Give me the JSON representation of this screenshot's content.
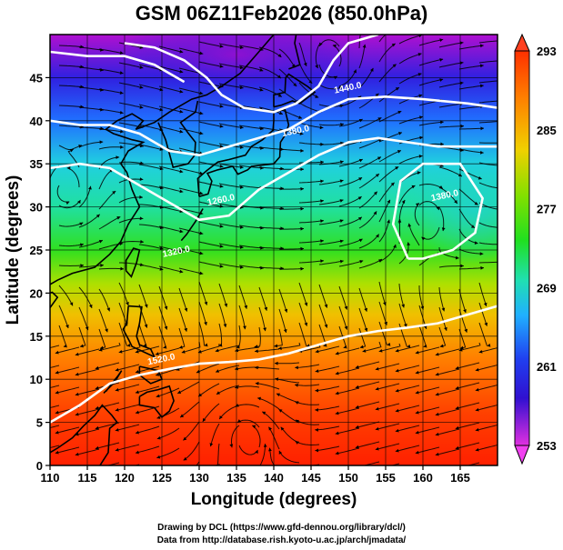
{
  "title": "GSM 06Z11Feb2026 (850.0hPa)",
  "x_axis": {
    "label": "Longitude (degrees)",
    "min": 110,
    "max": 170,
    "ticks": [
      "110",
      "115",
      "120",
      "125",
      "130",
      "135",
      "140",
      "145",
      "150",
      "155",
      "160",
      "165"
    ]
  },
  "y_axis": {
    "label": "Latitude  (degrees)",
    "min": 0,
    "max": 50,
    "ticks": [
      "0",
      "5",
      "10",
      "15",
      "20",
      "25",
      "30",
      "35",
      "40",
      "45"
    ]
  },
  "colorbar": {
    "min": 253,
    "max": 293,
    "labels": [
      "293",
      "285",
      "277",
      "269",
      "261",
      "253"
    ],
    "colors": [
      "#e040e0",
      "#8010d0",
      "#2020e0",
      "#2090ff",
      "#20d0e0",
      "#20e0a0",
      "#30e020",
      "#a8e000",
      "#f0d000",
      "#ff8000",
      "#ff2000"
    ]
  },
  "contour_labels": [
    {
      "text": "1260.0"
    },
    {
      "text": "1380.0"
    },
    {
      "text": "1440.0"
    },
    {
      "text": "1320.0"
    },
    {
      "text": "1380.0"
    },
    {
      "text": "1520.0"
    }
  ],
  "credits": {
    "line1": "Drawing by DCL (https://www.gfd-dennou.org/library/dcl/)",
    "line2": "Data from http://database.rish.kyoto-u.ac.jp/arch/jmadata/"
  }
}
